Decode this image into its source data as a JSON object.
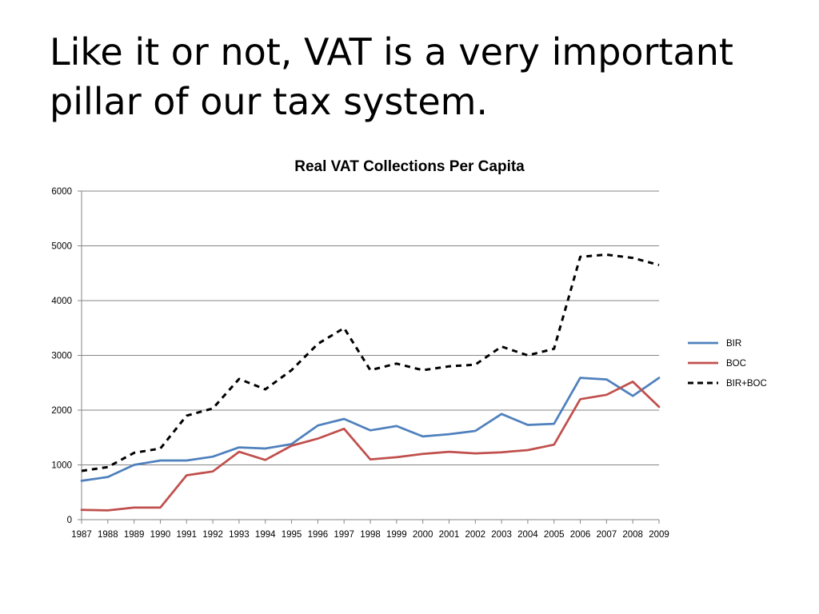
{
  "slide": {
    "title": "Like it or not, VAT is a very important pillar of our tax system."
  },
  "chart_data": {
    "type": "line",
    "title": "Real VAT Collections Per Capita",
    "xlabel": "",
    "ylabel": "",
    "ylim": [
      0,
      6000
    ],
    "yticks": [
      0,
      1000,
      2000,
      3000,
      4000,
      5000,
      6000
    ],
    "grid": true,
    "legend_position": "right",
    "categories": [
      "1987",
      "1988",
      "1989",
      "1990",
      "1991",
      "1992",
      "1993",
      "1994",
      "1995",
      "1996",
      "1997",
      "1998",
      "1999",
      "2000",
      "2001",
      "2002",
      "2003",
      "2004",
      "2005",
      "2006",
      "2007",
      "2008",
      "2009"
    ],
    "series": [
      {
        "name": "BIR",
        "color": "#4f81bd",
        "style": "solid",
        "values": [
          710,
          780,
          1000,
          1080,
          1080,
          1150,
          1320,
          1300,
          1380,
          1720,
          1840,
          1630,
          1710,
          1520,
          1560,
          1620,
          1930,
          1730,
          1750,
          2590,
          2560,
          2260,
          2590
        ]
      },
      {
        "name": "BOC",
        "color": "#c0504d",
        "style": "solid",
        "values": [
          180,
          170,
          220,
          220,
          810,
          880,
          1240,
          1090,
          1350,
          1480,
          1660,
          1100,
          1140,
          1200,
          1240,
          1210,
          1230,
          1270,
          1370,
          2200,
          2280,
          2520,
          2060
        ]
      },
      {
        "name": "BIR+BOC",
        "color": "#000000",
        "style": "dashed",
        "values": [
          890,
          960,
          1220,
          1300,
          1900,
          2030,
          2570,
          2380,
          2730,
          3210,
          3500,
          2730,
          2850,
          2730,
          2800,
          2830,
          3160,
          3000,
          3120,
          4800,
          4840,
          4780,
          4650
        ]
      }
    ]
  }
}
